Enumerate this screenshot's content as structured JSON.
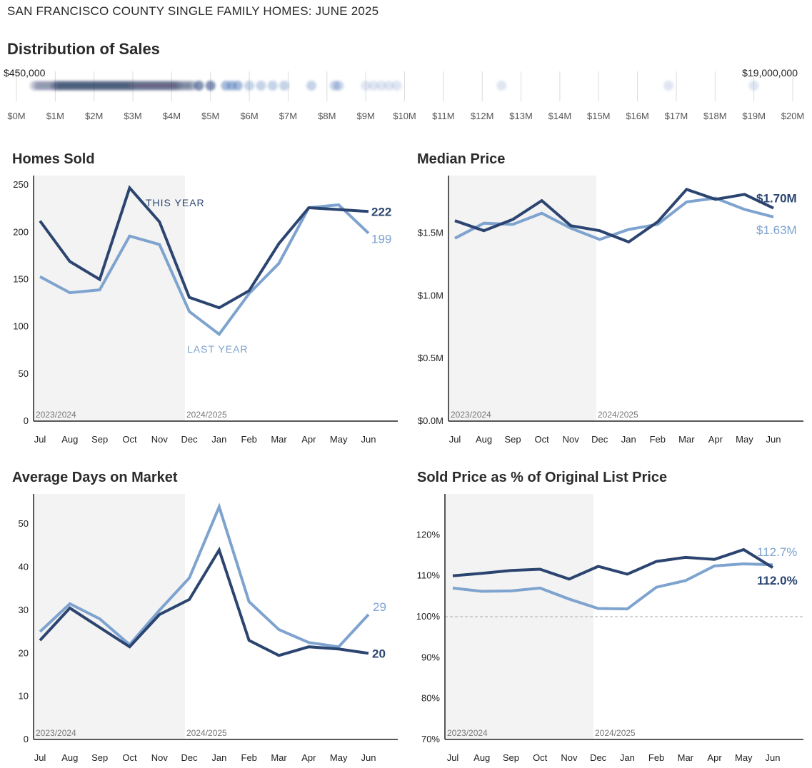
{
  "page": {
    "title": "SAN FRANCISCO COUNTY SINGLE FAMILY HOMES: JUNE 2025"
  },
  "colors": {
    "this_year": "#2c4570",
    "last_year": "#7ea3cf",
    "shade": "#f3f3f3",
    "axis": "#222222",
    "grid": "#dddddd"
  },
  "chart_data": [
    {
      "id": "distribution",
      "type": "scatter",
      "title": "Distribution of Sales",
      "xlabel": "",
      "ylabel": "",
      "xlim": [
        0,
        20
      ],
      "x_ticks": [
        "$0M",
        "$1M",
        "$2M",
        "$3M",
        "$4M",
        "$5M",
        "$6M",
        "$7M",
        "$8M",
        "$9M",
        "$10M",
        "$11M",
        "$12M",
        "$13M",
        "$14M",
        "$15M",
        "$16M",
        "$17M",
        "$18M",
        "$19M",
        "$20M"
      ],
      "min_label": "$450,000",
      "max_label": "$19,000,000",
      "min_value": 0.45,
      "max_value": 19.0,
      "density_bands": [
        {
          "from": 0.45,
          "to": 1.0,
          "intensity": 0.5
        },
        {
          "from": 1.0,
          "to": 3.0,
          "intensity": 1.0
        },
        {
          "from": 3.0,
          "to": 4.2,
          "intensity": 0.85
        },
        {
          "from": 4.2,
          "to": 4.6,
          "intensity": 0.6
        }
      ],
      "points": [
        4.7,
        5.0,
        5.4,
        5.55,
        5.7,
        6.0,
        6.3,
        6.6,
        6.9,
        7.6,
        8.2,
        8.3,
        9.0,
        9.2,
        9.4,
        9.6,
        9.8,
        12.5,
        16.8,
        19.0
      ]
    },
    {
      "id": "homes-sold",
      "type": "line",
      "title": "Homes Sold",
      "categories": [
        "Jul",
        "Aug",
        "Sep",
        "Oct",
        "Nov",
        "Dec",
        "Jan",
        "Feb",
        "Mar",
        "Apr",
        "May",
        "Jun"
      ],
      "y_ticks": [
        "0",
        "50",
        "100",
        "150",
        "200",
        "250"
      ],
      "y_tick_values": [
        0,
        50,
        100,
        150,
        200,
        250
      ],
      "ylim": [
        0,
        260
      ],
      "season_labels": [
        "2023/2024",
        "2024/2025"
      ],
      "series": [
        {
          "name": "THIS YEAR",
          "key": "this_year",
          "values": [
            212,
            169,
            150,
            247,
            211,
            131,
            120,
            138,
            188,
            226,
            224,
            222
          ],
          "end_label": "222"
        },
        {
          "name": "LAST YEAR",
          "key": "last_year",
          "values": [
            153,
            136,
            139,
            196,
            187,
            116,
            92,
            135,
            167,
            226,
            229,
            199
          ],
          "end_label": "199"
        }
      ]
    },
    {
      "id": "median-price",
      "type": "line",
      "title": "Median Price",
      "categories": [
        "Jul",
        "Aug",
        "Sep",
        "Oct",
        "Nov",
        "Dec",
        "Jan",
        "Feb",
        "Mar",
        "Apr",
        "May",
        "Jun"
      ],
      "y_ticks": [
        "$0.0M",
        "$0.5M",
        "$1.0M",
        "$1.5M"
      ],
      "y_tick_values": [
        0,
        0.5,
        1.0,
        1.5
      ],
      "ylim": [
        0,
        1.96
      ],
      "season_labels": [
        "2023/2024",
        "2024/2025"
      ],
      "series": [
        {
          "name": "This Year",
          "key": "this_year",
          "values": [
            1.6,
            1.52,
            1.61,
            1.76,
            1.56,
            1.52,
            1.43,
            1.59,
            1.85,
            1.77,
            1.81,
            1.7
          ],
          "end_label": "$1.70M"
        },
        {
          "name": "Last Year",
          "key": "last_year",
          "values": [
            1.46,
            1.58,
            1.57,
            1.66,
            1.54,
            1.45,
            1.53,
            1.57,
            1.75,
            1.78,
            1.69,
            1.63
          ],
          "end_label": "$1.63M"
        }
      ]
    },
    {
      "id": "days-on-market",
      "type": "line",
      "title": "Average Days on Market",
      "categories": [
        "Jul",
        "Aug",
        "Sep",
        "Oct",
        "Nov",
        "Dec",
        "Jan",
        "Feb",
        "Mar",
        "Apr",
        "May",
        "Jun"
      ],
      "y_ticks": [
        "0",
        "10",
        "20",
        "30",
        "40",
        "50"
      ],
      "y_tick_values": [
        0,
        10,
        20,
        30,
        40,
        50
      ],
      "ylim": [
        0,
        57
      ],
      "season_labels": [
        "2023/2024",
        "2024/2025"
      ],
      "series": [
        {
          "name": "This Year",
          "key": "this_year",
          "values": [
            23,
            30.5,
            26,
            21.5,
            29,
            32.5,
            44,
            23,
            19.5,
            21.5,
            21,
            20
          ],
          "end_label": "20"
        },
        {
          "name": "Last Year",
          "key": "last_year",
          "values": [
            25,
            31.5,
            28,
            22,
            30,
            37.5,
            54,
            32,
            25.5,
            22.5,
            21.5,
            29
          ],
          "end_label": "29"
        }
      ]
    },
    {
      "id": "sold-to-list",
      "type": "line",
      "title": "Sold Price as % of Original List Price",
      "categories": [
        "Jul",
        "Aug",
        "Sep",
        "Oct",
        "Nov",
        "Dec",
        "Jan",
        "Feb",
        "Mar",
        "Apr",
        "May",
        "Jun"
      ],
      "y_ticks": [
        "70%",
        "80%",
        "90%",
        "100%",
        "110%",
        "120%"
      ],
      "y_tick_values": [
        70,
        80,
        90,
        100,
        110,
        120
      ],
      "ylim": [
        70,
        130
      ],
      "reference_line": 100,
      "season_labels": [
        "2023/2024",
        "2024/2025"
      ],
      "series": [
        {
          "name": "This Year",
          "key": "this_year",
          "values": [
            110.0,
            110.6,
            111.3,
            111.6,
            109.2,
            112.3,
            110.4,
            113.5,
            114.5,
            114.0,
            116.4,
            112.0
          ],
          "end_label": "112.0%"
        },
        {
          "name": "Last Year",
          "key": "last_year",
          "values": [
            107.0,
            106.2,
            106.3,
            107.0,
            104.3,
            102.0,
            101.9,
            107.2,
            108.8,
            112.4,
            112.9,
            112.7
          ],
          "end_label": "112.7%"
        }
      ]
    }
  ]
}
